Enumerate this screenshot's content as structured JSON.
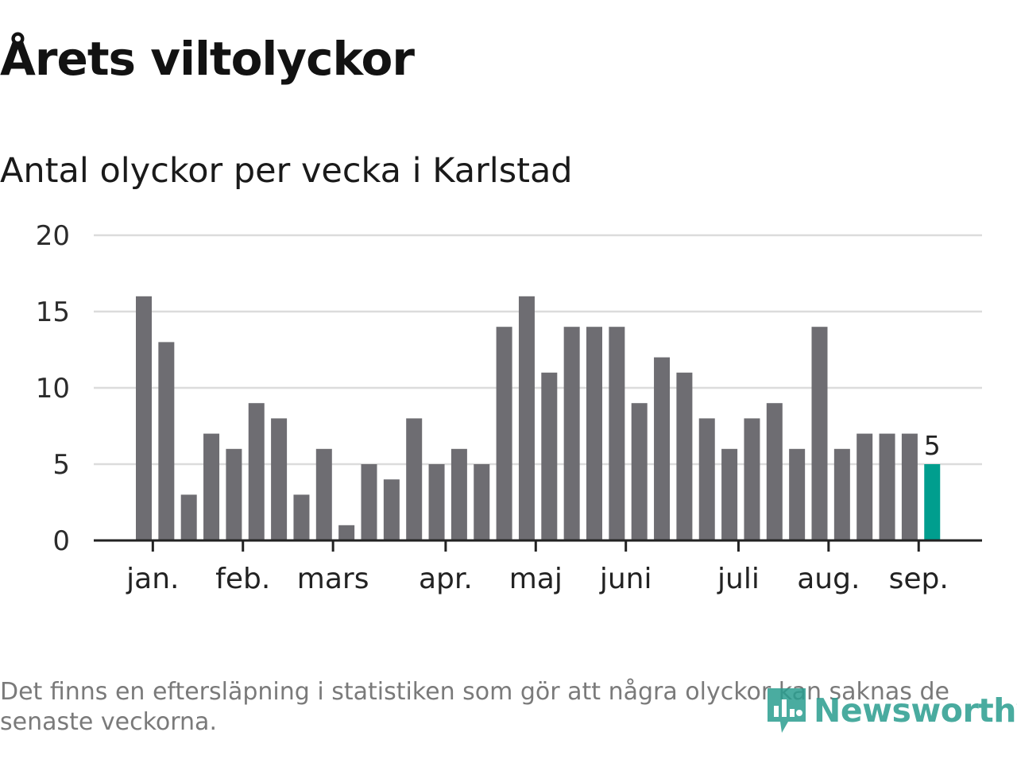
{
  "title": "Årets viltolyckor",
  "subtitle": "Antal olyckor per vecka i Karlstad",
  "footnote": "Det finns en eftersläpning i statistiken som gör att några olyckor kan saknas de senaste veckorna.",
  "brand": {
    "name": "Newsworthy",
    "logo_icon": "newsworthy-logo-icon"
  },
  "colors": {
    "bar": "#6e6d72",
    "highlight": "#009e8e",
    "grid": "#dcdcdc",
    "axis": "#222222",
    "brand": "#2a9d8f"
  },
  "chart_data": {
    "type": "bar",
    "title": "",
    "xlabel": "",
    "ylabel": "",
    "ylim": [
      0,
      20
    ],
    "yticks": [
      0,
      5,
      10,
      15,
      20
    ],
    "grid": true,
    "values": [
      16,
      13,
      3,
      7,
      6,
      9,
      8,
      3,
      6,
      1,
      5,
      4,
      8,
      5,
      6,
      5,
      14,
      16,
      11,
      14,
      14,
      14,
      9,
      12,
      11,
      8,
      6,
      8,
      9,
      6,
      14,
      6,
      7,
      7,
      7,
      5
    ],
    "highlight_index": 35,
    "highlight_label": "5",
    "month_ticks": [
      {
        "label": "jan.",
        "position": 0.4
      },
      {
        "label": "feb.",
        "position": 4.4
      },
      {
        "label": "mars",
        "position": 8.4
      },
      {
        "label": "apr.",
        "position": 13.4
      },
      {
        "label": "maj",
        "position": 17.4
      },
      {
        "label": "juni",
        "position": 21.4
      },
      {
        "label": "juli",
        "position": 26.4
      },
      {
        "label": "aug.",
        "position": 30.4
      },
      {
        "label": "sep.",
        "position": 34.4
      }
    ]
  }
}
